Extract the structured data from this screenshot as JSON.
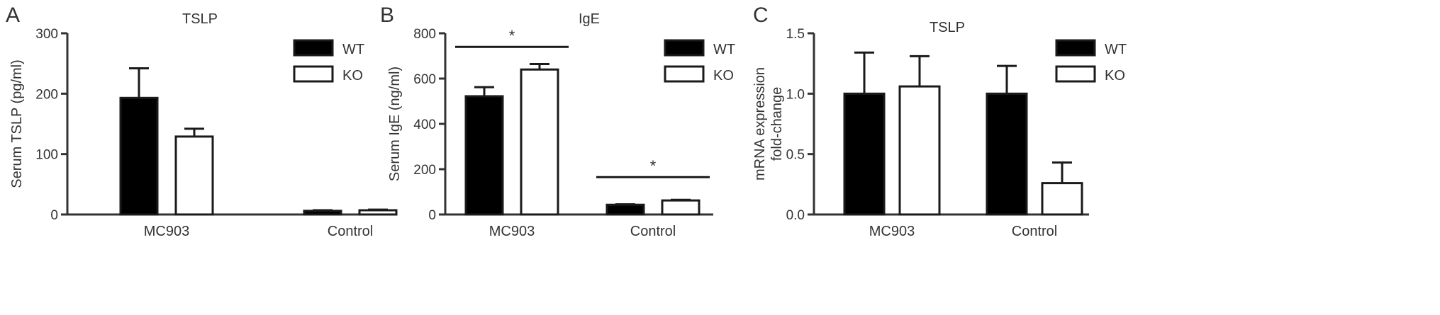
{
  "chart_data": [
    {
      "type": "bar",
      "panel_label": "A",
      "title": "TSLP",
      "xlabel": "",
      "ylabel": "Serum TSLP (pg/ml)",
      "categories": [
        "MC903",
        "Control"
      ],
      "ylim": [
        0,
        300
      ],
      "yticks": [
        0,
        100,
        200,
        300
      ],
      "ytick_labels": [
        "0",
        "100",
        "200",
        "300"
      ],
      "series": [
        {
          "name": "WT",
          "values": [
            193,
            6
          ],
          "errors": [
            49,
            1
          ],
          "fill": "#000000"
        },
        {
          "name": "KO",
          "values": [
            129,
            7
          ],
          "errors": [
            13,
            1
          ],
          "fill": "#ffffff"
        }
      ],
      "significance": [],
      "legend": "top-right",
      "grid": false
    },
    {
      "type": "bar",
      "panel_label": "B",
      "title": "IgE",
      "xlabel": "",
      "ylabel": "Serum IgE (ng/ml)",
      "categories": [
        "MC903",
        "Control"
      ],
      "ylim": [
        0,
        800
      ],
      "yticks": [
        0,
        200,
        400,
        600,
        800
      ],
      "ytick_labels": [
        "0",
        "200",
        "400",
        "600",
        "800"
      ],
      "series": [
        {
          "name": "WT",
          "values": [
            522,
            43
          ],
          "errors": [
            40,
            2
          ],
          "fill": "#000000"
        },
        {
          "name": "KO",
          "values": [
            640,
            62
          ],
          "errors": [
            24,
            3
          ],
          "fill": "#ffffff"
        }
      ],
      "significance": [
        {
          "category": 0,
          "label": "*",
          "y": 740
        },
        {
          "category": 1,
          "label": "*",
          "y": 165
        }
      ],
      "legend": "top-right",
      "grid": false
    },
    {
      "type": "bar",
      "panel_label": "C",
      "title": "TSLP",
      "xlabel": "",
      "ylabel_lines": [
        "mRNA expression",
        "fold-change"
      ],
      "categories": [
        "MC903",
        "Control"
      ],
      "ylim": [
        0,
        1.5
      ],
      "yticks": [
        0,
        0.5,
        1.0,
        1.5
      ],
      "ytick_labels": [
        "0.0",
        "0.5",
        "1.0",
        "1.5"
      ],
      "series": [
        {
          "name": "WT",
          "values": [
            1.0,
            1.0
          ],
          "errors": [
            0.34,
            0.23
          ],
          "fill": "#000000"
        },
        {
          "name": "KO",
          "values": [
            1.06,
            0.26
          ],
          "errors": [
            0.25,
            0.17
          ],
          "fill": "#ffffff"
        }
      ],
      "significance": [],
      "legend": "top-right",
      "grid": false
    }
  ]
}
